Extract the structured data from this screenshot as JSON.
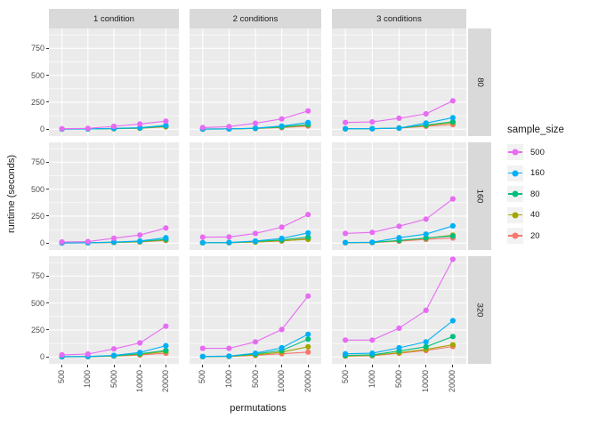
{
  "chart_data": {
    "type": "line",
    "title": "",
    "xlabel": "permutations",
    "ylabel": "runtime (seconds)",
    "x_categories": [
      "500",
      "1000",
      "5000",
      "10000",
      "20000"
    ],
    "y_ticks": [
      "0",
      "250",
      "500",
      "750"
    ],
    "y_minor_breaks": [
      125,
      375,
      625,
      875
    ],
    "ylim": [
      -63.4,
      934
    ],
    "grid": true,
    "legend_position": "right",
    "facet_columns": [
      "1 condition",
      "2 conditions",
      "3 conditions"
    ],
    "facet_rows": [
      "80",
      "160",
      "320"
    ],
    "legend": {
      "title": "sample_size",
      "entries": [
        {
          "label": "500",
          "color": "#E76BF3"
        },
        {
          "label": "160",
          "color": "#00B0F6"
        },
        {
          "label": "80",
          "color": "#00BF7D"
        },
        {
          "label": "40",
          "color": "#A3A500"
        },
        {
          "label": "20",
          "color": "#F8766D"
        }
      ]
    },
    "colors": {
      "panel_background": "#EBEBEB",
      "strip_background": "#D9D9D9",
      "grid": "#FFFFFF",
      "tick_text": "#4D4D4D",
      "title_text": "#1A1A1A"
    },
    "panels": [
      {
        "facet_row": "80",
        "facet_col": "1 condition",
        "series": [
          {
            "name": "500",
            "values": [
              5,
              8,
              27,
              49,
              75
            ]
          },
          {
            "name": "160",
            "values": [
              2,
              3,
              8,
              15,
              36
            ]
          },
          {
            "name": "80",
            "values": [
              2,
              3,
              6,
              12,
              30
            ]
          },
          {
            "name": "40",
            "values": [
              2,
              3,
              6,
              10,
              26
            ]
          },
          {
            "name": "20",
            "values": [
              2,
              3,
              5,
              9,
              22
            ]
          }
        ]
      },
      {
        "facet_row": "80",
        "facet_col": "2 conditions",
        "series": [
          {
            "name": "500",
            "values": [
              16,
              25,
              55,
              96,
              170
            ]
          },
          {
            "name": "160",
            "values": [
              2,
              3,
              10,
              30,
              63
            ]
          },
          {
            "name": "80",
            "values": [
              2,
              3,
              8,
              22,
              44
            ]
          },
          {
            "name": "40",
            "values": [
              2,
              3,
              8,
              18,
              38
            ]
          },
          {
            "name": "20",
            "values": [
              2,
              3,
              7,
              15,
              30
            ]
          }
        ]
      },
      {
        "facet_row": "80",
        "facet_col": "3 conditions",
        "series": [
          {
            "name": "500",
            "values": [
              63,
              68,
              102,
              143,
              264
            ]
          },
          {
            "name": "160",
            "values": [
              5,
              6,
              10,
              58,
              107
            ]
          },
          {
            "name": "80",
            "values": [
              4,
              5,
              12,
              40,
              69
            ]
          },
          {
            "name": "40",
            "values": [
              4,
              5,
              12,
              35,
              60
            ]
          },
          {
            "name": "20",
            "values": [
              4,
              5,
              10,
              28,
              44
            ]
          }
        ]
      },
      {
        "facet_row": "160",
        "facet_col": "1 condition",
        "series": [
          {
            "name": "500",
            "values": [
              11,
              14,
              45,
              75,
              140
            ]
          },
          {
            "name": "160",
            "values": [
              2,
              3,
              10,
              20,
              50
            ]
          },
          {
            "name": "80",
            "values": [
              2,
              3,
              8,
              15,
              35
            ]
          },
          {
            "name": "40",
            "values": [
              2,
              3,
              7,
              13,
              30
            ]
          },
          {
            "name": "20",
            "values": [
              2,
              3,
              6,
              11,
              25
            ]
          }
        ]
      },
      {
        "facet_row": "160",
        "facet_col": "2 conditions",
        "series": [
          {
            "name": "500",
            "values": [
              55,
              57,
              90,
              148,
              265
            ]
          },
          {
            "name": "160",
            "values": [
              4,
              6,
              20,
              44,
              95
            ]
          },
          {
            "name": "80",
            "values": [
              3,
              5,
              15,
              30,
              55
            ]
          },
          {
            "name": "40",
            "values": [
              3,
              4,
              12,
              22,
              35
            ]
          },
          {
            "name": "20",
            "values": [
              3,
              4,
              10,
              20,
              42
            ]
          }
        ]
      },
      {
        "facet_row": "160",
        "facet_col": "3 conditions",
        "series": [
          {
            "name": "500",
            "values": [
              90,
              100,
              157,
              223,
              410
            ]
          },
          {
            "name": "160",
            "values": [
              5,
              8,
              50,
              83,
              160
            ]
          },
          {
            "name": "80",
            "values": [
              5,
              7,
              25,
              48,
              66
            ]
          },
          {
            "name": "40",
            "values": [
              4,
              6,
              22,
              45,
              74
            ]
          },
          {
            "name": "20",
            "values": [
              4,
              5,
              18,
              35,
              48
            ]
          }
        ]
      },
      {
        "facet_row": "320",
        "facet_col": "1 condition",
        "series": [
          {
            "name": "500",
            "values": [
              20,
              27,
              75,
              130,
              285
            ]
          },
          {
            "name": "160",
            "values": [
              3,
              5,
              15,
              42,
              105
            ]
          },
          {
            "name": "80",
            "values": [
              3,
              4,
              12,
              30,
              60
            ]
          },
          {
            "name": "40",
            "values": [
              2,
              4,
              10,
              25,
              50
            ]
          },
          {
            "name": "20",
            "values": [
              2,
              3,
              8,
              18,
              35
            ]
          }
        ]
      },
      {
        "facet_row": "320",
        "facet_col": "2 conditions",
        "series": [
          {
            "name": "500",
            "values": [
              80,
              80,
              140,
              255,
              565
            ]
          },
          {
            "name": "160",
            "values": [
              5,
              8,
              35,
              85,
              210
            ]
          },
          {
            "name": "80",
            "values": [
              4,
              7,
              28,
              60,
              165
            ]
          },
          {
            "name": "40",
            "values": [
              4,
              6,
              20,
              45,
              95
            ]
          },
          {
            "name": "20",
            "values": [
              3,
              5,
              15,
              30,
              45
            ]
          }
        ]
      },
      {
        "facet_row": "320",
        "facet_col": "3 conditions",
        "series": [
          {
            "name": "500",
            "values": [
              157,
              157,
              267,
              432,
              905
            ]
          },
          {
            "name": "160",
            "values": [
              30,
              35,
              85,
              140,
              336
            ]
          },
          {
            "name": "80",
            "values": [
              15,
              20,
              55,
              95,
              190
            ]
          },
          {
            "name": "40",
            "values": [
              10,
              15,
              40,
              70,
              113
            ]
          },
          {
            "name": "20",
            "values": [
              8,
              12,
              35,
              60,
              97
            ]
          }
        ]
      }
    ]
  }
}
